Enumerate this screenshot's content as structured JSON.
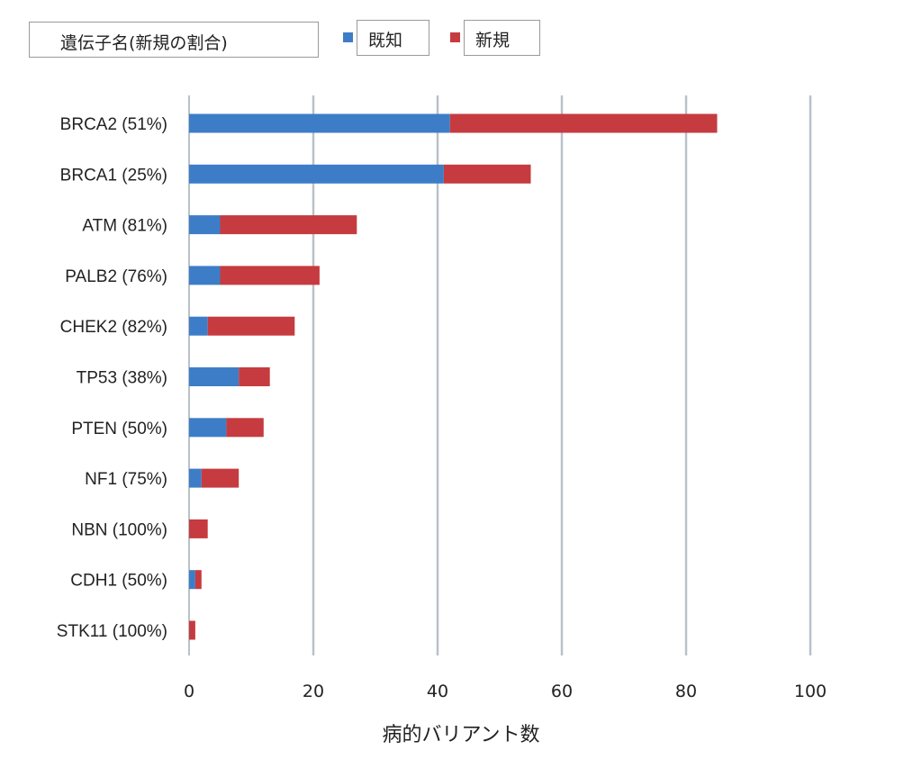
{
  "legend": {
    "title": "遺伝子名(新規の割合)"
  },
  "colors": {
    "known": "#3d7dc8",
    "novel": "#c63b3f",
    "grid": "#b9c1c9"
  },
  "chart_data": {
    "type": "bar",
    "orientation": "horizontal",
    "stacked": true,
    "title": "",
    "xlabel": "病的バリアント数",
    "ylabel": "",
    "xlim": [
      0,
      100
    ],
    "xticks": [
      0,
      20,
      40,
      60,
      80,
      100
    ],
    "grid": "vertical",
    "legend_position": "top",
    "categories": [
      "BRCA2 (51%)",
      "BRCA1 (25%)",
      "ATM (81%)",
      "PALB2 (76%)",
      "CHEK2 (82%)",
      "TP53 (38%)",
      "PTEN (50%)",
      "NF1 (75%)",
      "NBN (100%)",
      "CDH1 (50%)",
      "STK11 (100%)"
    ],
    "series": [
      {
        "name": "既知",
        "values": [
          42,
          41,
          5,
          5,
          3,
          8,
          6,
          2,
          0,
          1,
          0
        ]
      },
      {
        "name": "新規",
        "values": [
          43,
          14,
          22,
          16,
          14,
          5,
          6,
          6,
          3,
          1,
          1
        ]
      }
    ]
  }
}
